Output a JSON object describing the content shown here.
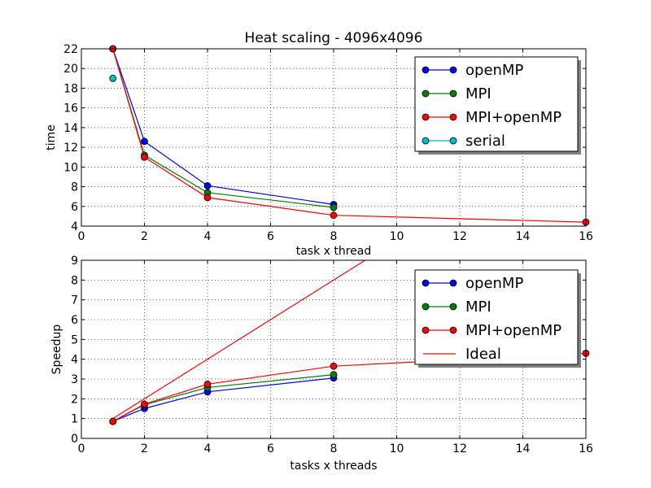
{
  "chart_data": [
    {
      "type": "line",
      "title": "Heat scaling - 4096x4096",
      "xlabel": "task x thread",
      "ylabel": "time",
      "xlim": [
        0,
        16
      ],
      "ylim": [
        4,
        22
      ],
      "xticks": [
        0,
        2,
        4,
        6,
        8,
        10,
        12,
        14,
        16
      ],
      "yticks": [
        4,
        6,
        8,
        10,
        12,
        14,
        16,
        18,
        20,
        22
      ],
      "grid": true,
      "legend": "top-right",
      "series": [
        {
          "name": "openMP",
          "color": "#0000ff",
          "marker": "circle",
          "x": [
            1,
            2,
            4,
            8
          ],
          "y": [
            22.0,
            12.6,
            8.1,
            6.2
          ]
        },
        {
          "name": "MPI",
          "color": "#008000",
          "marker": "circle",
          "x": [
            1,
            2,
            4,
            8
          ],
          "y": [
            22.0,
            11.2,
            7.4,
            5.9
          ]
        },
        {
          "name": "MPI+openMP",
          "color": "#ff0000",
          "marker": "circle",
          "x": [
            1,
            2,
            4,
            8,
            16
          ],
          "y": [
            22.0,
            11.0,
            6.9,
            5.1,
            4.4
          ]
        },
        {
          "name": "serial",
          "color": "#00bfbf",
          "marker": "circle",
          "x": [
            1
          ],
          "y": [
            19.0
          ]
        }
      ]
    },
    {
      "type": "line",
      "title": "",
      "xlabel": "tasks x threads",
      "ylabel": "Speedup",
      "xlim": [
        0,
        16
      ],
      "ylim": [
        0,
        9
      ],
      "xticks": [
        0,
        2,
        4,
        6,
        8,
        10,
        12,
        14,
        16
      ],
      "yticks": [
        0,
        1,
        2,
        3,
        4,
        5,
        6,
        7,
        8,
        9
      ],
      "grid": true,
      "legend": "top-right",
      "series": [
        {
          "name": "openMP",
          "color": "#0000ff",
          "marker": "circle",
          "x": [
            1,
            2,
            4,
            8
          ],
          "y": [
            0.86,
            1.51,
            2.35,
            3.05
          ]
        },
        {
          "name": "MPI",
          "color": "#008000",
          "marker": "circle",
          "x": [
            1,
            2,
            4,
            8
          ],
          "y": [
            0.86,
            1.7,
            2.57,
            3.22
          ]
        },
        {
          "name": "MPI+openMP",
          "color": "#ff0000",
          "marker": "circle",
          "x": [
            1,
            2,
            4,
            8,
            16
          ],
          "y": [
            0.86,
            1.73,
            2.74,
            3.65,
            4.3
          ]
        },
        {
          "name": "Ideal",
          "color": "#ff0000",
          "marker": "none",
          "x": [
            1,
            16
          ],
          "y": [
            1,
            16
          ]
        }
      ]
    }
  ]
}
